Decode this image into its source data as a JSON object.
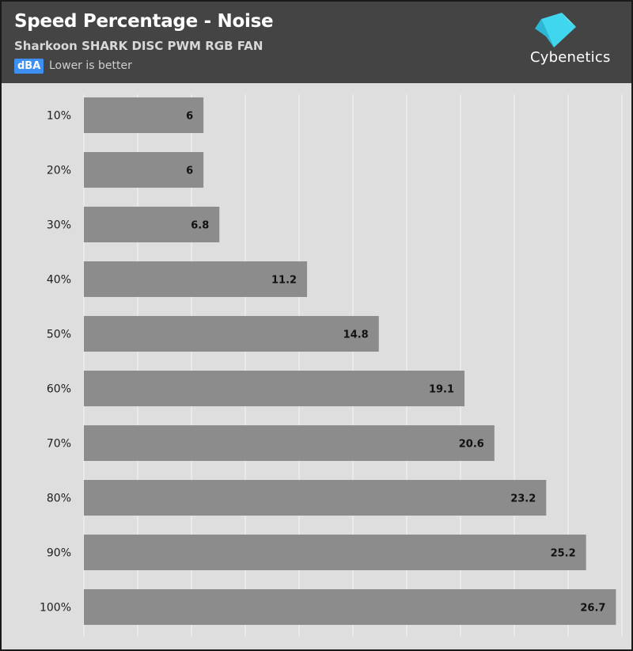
{
  "header": {
    "title": "Speed Percentage - Noise",
    "subtitle": "Sharkoon SHARK DISC PWM RGB FAN",
    "unit_badge": "dBA",
    "note": "Lower is better",
    "brand": "Cybenetics"
  },
  "colors": {
    "header_bg": "#444444",
    "plot_bg": "#dedede",
    "bar": "#8c8c8c",
    "badge": "#3d8ff2",
    "logo_accent": "#3fd6ee"
  },
  "chart_data": {
    "type": "bar",
    "orientation": "horizontal",
    "title": "Speed Percentage - Noise",
    "subtitle": "Sharkoon SHARK DISC PWM RGB FAN",
    "unit": "dBA",
    "categories": [
      "10%",
      "20%",
      "30%",
      "40%",
      "50%",
      "60%",
      "70%",
      "80%",
      "90%",
      "100%"
    ],
    "values": [
      6,
      6,
      6.8,
      11.2,
      14.8,
      19.1,
      20.6,
      23.2,
      25.2,
      26.7
    ],
    "value_labels": [
      "6",
      "6",
      "6.8",
      "11.2",
      "14.8",
      "19.1",
      "20.6",
      "23.2",
      "25.2",
      "26.7"
    ],
    "xlim": [
      0,
      27
    ],
    "grid": true,
    "legend": "none"
  }
}
